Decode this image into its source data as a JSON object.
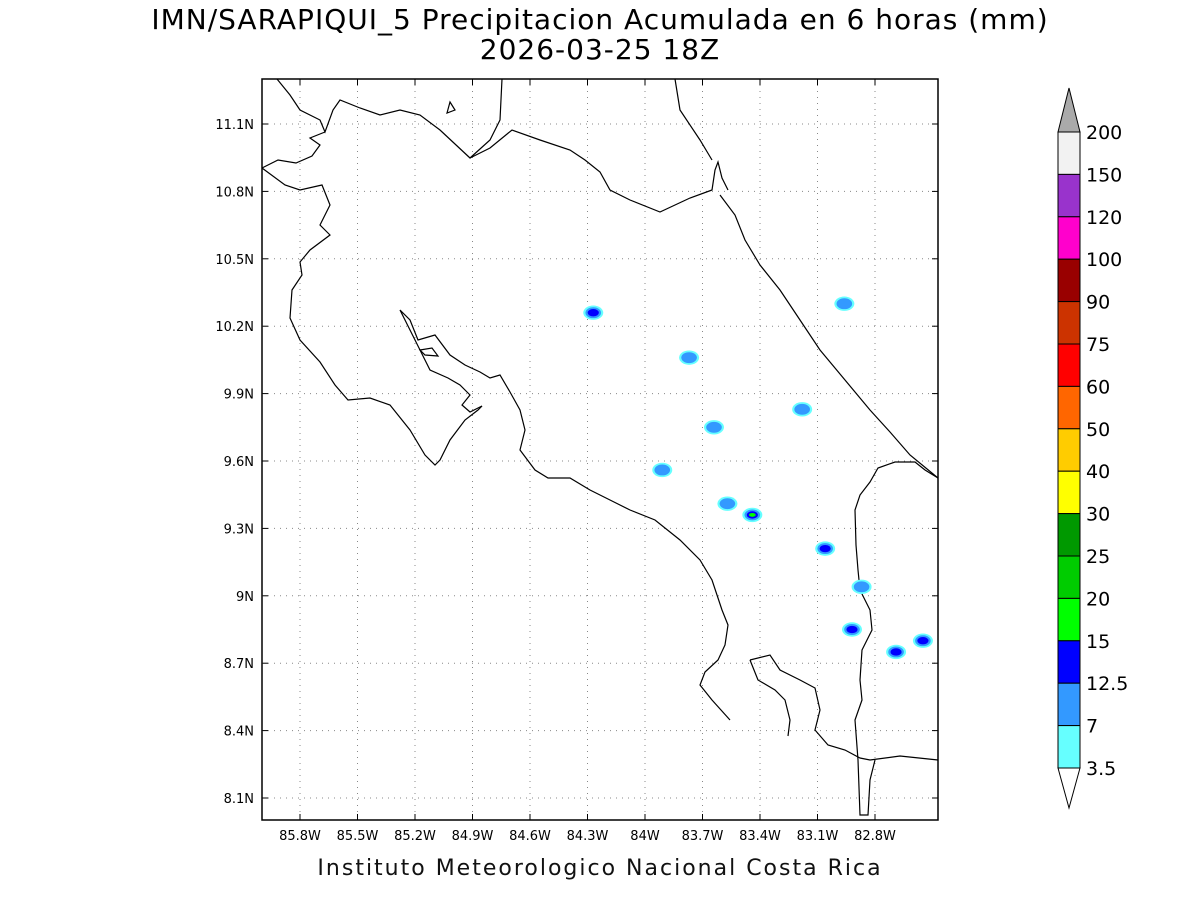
{
  "title": {
    "line1": "IMN/SARAPIQUI_5 Precipitacion Acumulada en 6 horas (mm)",
    "line2": "2026-03-25 18Z"
  },
  "footer": "Instituto Meteorologico Nacional Costa Rica",
  "map": {
    "lon_range": [
      -86.0,
      -82.5
    ],
    "lat_range": [
      8.0,
      11.3
    ],
    "x_ticks": [
      "85.8W",
      "85.5W",
      "85.2W",
      "84.9W",
      "84.6W",
      "84.3W",
      "84W",
      "83.7W",
      "83.4W",
      "83.1W",
      "82.8W"
    ],
    "y_ticks": [
      "11.1N",
      "10.8N",
      "10.5N",
      "10.2N",
      "9.9N",
      "9.6N",
      "9.3N",
      "9N",
      "8.7N",
      "8.4N",
      "8.1N"
    ],
    "grid": true
  },
  "colorbar": {
    "levels": [
      "3.5",
      "7",
      "12.5",
      "15",
      "20",
      "25",
      "30",
      "40",
      "50",
      "60",
      "75",
      "90",
      "100",
      "120",
      "150",
      "200"
    ],
    "colors": [
      "#66ffff",
      "#3399ff",
      "#0000ff",
      "#00ff00",
      "#00cc00",
      "#009900",
      "#ffff00",
      "#ffcc00",
      "#ff6600",
      "#ff0000",
      "#cc3300",
      "#990000",
      "#ff00cc",
      "#9933cc",
      "#f2f2f2"
    ],
    "over_color": "#aaaaaa"
  },
  "precip_cells": [
    {
      "lon": -84.27,
      "lat": 10.26,
      "level": "12.5"
    },
    {
      "lon": -83.77,
      "lat": 10.06,
      "level": "7"
    },
    {
      "lon": -82.96,
      "lat": 10.3,
      "level": "7"
    },
    {
      "lon": -83.64,
      "lat": 9.75,
      "level": "7"
    },
    {
      "lon": -83.91,
      "lat": 9.56,
      "level": "7"
    },
    {
      "lon": -83.44,
      "lat": 9.36,
      "level": "20"
    },
    {
      "lon": -83.57,
      "lat": 9.41,
      "level": "7"
    },
    {
      "lon": -83.06,
      "lat": 9.21,
      "level": "12.5"
    },
    {
      "lon": -82.92,
      "lat": 8.85,
      "level": "12.5"
    },
    {
      "lon": -82.55,
      "lat": 8.8,
      "level": "12.5"
    },
    {
      "lon": -82.69,
      "lat": 8.75,
      "level": "12.5"
    },
    {
      "lon": -82.87,
      "lat": 9.04,
      "level": "7"
    },
    {
      "lon": -83.18,
      "lat": 9.83,
      "level": "7"
    }
  ]
}
